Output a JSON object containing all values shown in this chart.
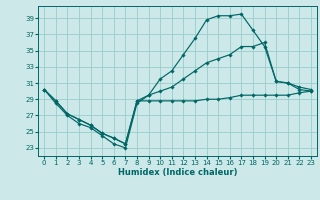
{
  "xlabel": "Humidex (Indice chaleur)",
  "bg_color": "#cce8e8",
  "grid_color": "#99cccc",
  "line_color": "#006666",
  "xlim": [
    -0.5,
    23.5
  ],
  "ylim": [
    22.0,
    40.5
  ],
  "xticks": [
    0,
    1,
    2,
    3,
    4,
    5,
    6,
    7,
    8,
    9,
    10,
    11,
    12,
    13,
    14,
    15,
    16,
    17,
    18,
    19,
    20,
    21,
    22,
    23
  ],
  "yticks": [
    23,
    25,
    27,
    29,
    31,
    33,
    35,
    37,
    39
  ],
  "figsize": [
    3.2,
    2.0
  ],
  "dpi": 100,
  "series": [
    {
      "x": [
        0,
        1,
        2,
        3,
        4,
        5,
        6,
        7,
        8,
        9,
        10,
        11,
        12,
        13,
        14,
        15,
        16,
        17,
        18,
        19,
        20,
        21,
        22,
        23
      ],
      "y": [
        30.2,
        28.5,
        27.0,
        26.0,
        25.5,
        24.5,
        23.5,
        23.0,
        28.5,
        29.5,
        31.5,
        32.5,
        34.5,
        36.5,
        38.8,
        39.3,
        39.3,
        39.5,
        37.5,
        35.5,
        31.2,
        31.0,
        30.2,
        30.0
      ]
    },
    {
      "x": [
        0,
        1,
        2,
        3,
        4,
        5,
        6,
        7,
        8,
        9,
        10,
        11,
        12,
        13,
        14,
        15,
        16,
        17,
        18,
        19,
        20,
        21,
        22,
        23
      ],
      "y": [
        30.2,
        28.8,
        27.2,
        26.5,
        25.8,
        24.8,
        24.2,
        23.5,
        28.8,
        29.5,
        30.0,
        30.5,
        31.5,
        32.5,
        33.5,
        34.0,
        34.5,
        35.5,
        35.5,
        36.0,
        31.2,
        31.0,
        30.5,
        30.2
      ]
    },
    {
      "x": [
        0,
        1,
        2,
        3,
        4,
        5,
        6,
        7,
        8,
        9,
        10,
        11,
        12,
        13,
        14,
        15,
        16,
        17,
        18,
        19,
        20,
        21,
        22,
        23
      ],
      "y": [
        30.2,
        28.8,
        27.2,
        26.5,
        25.8,
        24.8,
        24.2,
        23.5,
        28.8,
        28.8,
        28.8,
        28.8,
        28.8,
        28.8,
        29.0,
        29.0,
        29.2,
        29.5,
        29.5,
        29.5,
        29.5,
        29.5,
        29.8,
        30.0
      ]
    }
  ]
}
